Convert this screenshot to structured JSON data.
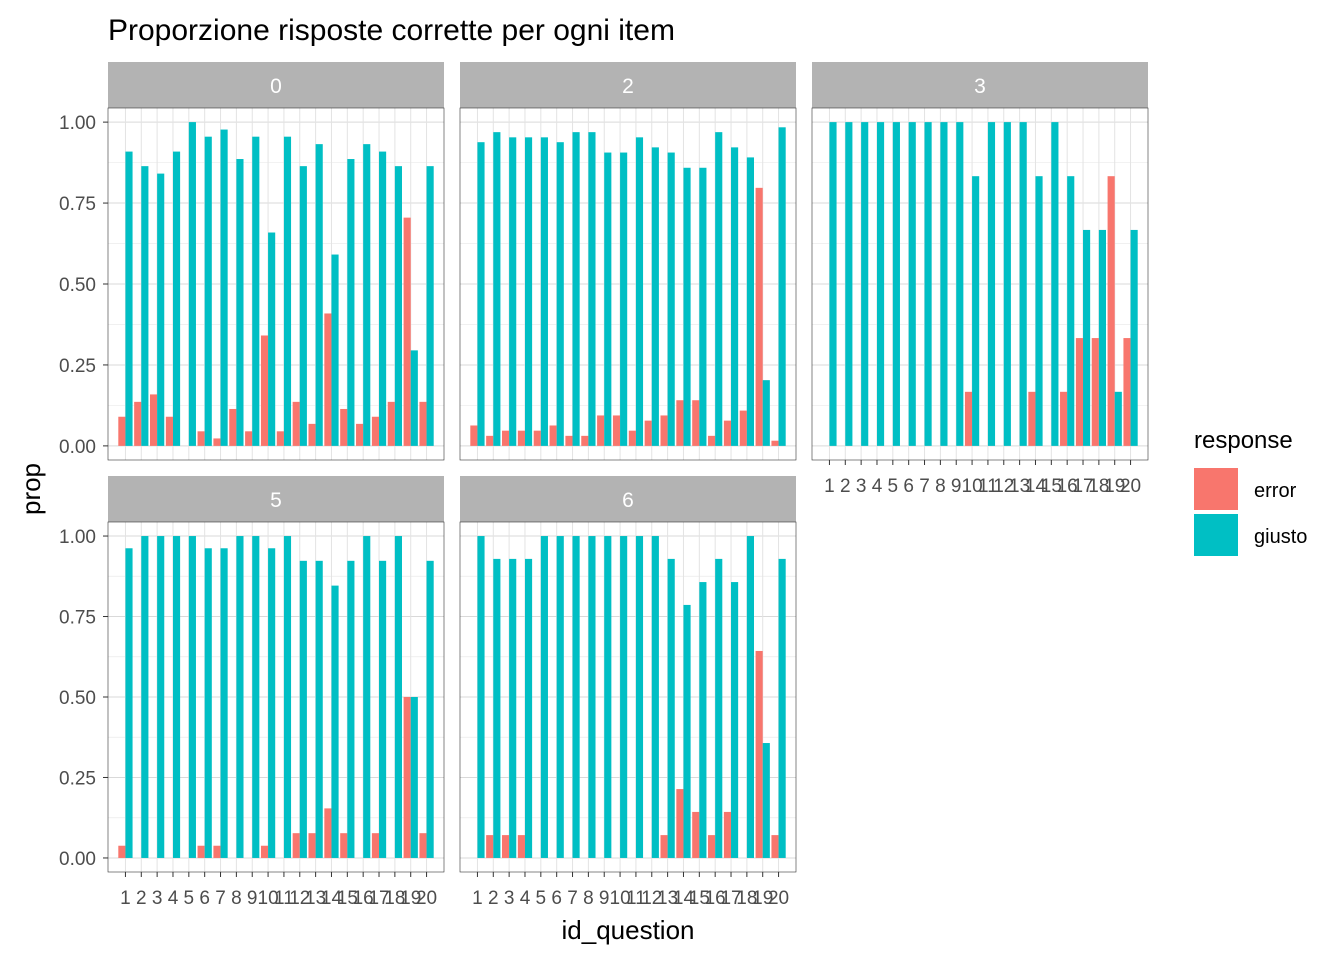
{
  "chart_data": {
    "type": "bar",
    "title": "Proporzione risposte corrette per ogni item",
    "xlabel": "id_question",
    "ylabel": "prop",
    "ylim": [
      0,
      1.1
    ],
    "yticks": [
      "0.00",
      "0.25",
      "0.50",
      "0.75",
      "1.00"
    ],
    "categories": [
      "1",
      "2",
      "3",
      "4",
      "5",
      "6",
      "7",
      "8",
      "9",
      "10",
      "11",
      "12",
      "13",
      "14",
      "15",
      "16",
      "17",
      "18",
      "19",
      "20"
    ],
    "legend": {
      "title": "response",
      "position": "right",
      "items": [
        {
          "name": "error",
          "color": "#F8766D"
        },
        {
          "name": "giusto",
          "color": "#00BFC4"
        }
      ]
    },
    "grid": true,
    "facets": [
      {
        "label": "0",
        "series": [
          {
            "name": "error",
            "values": [
              0.09,
              0.136,
              0.159,
              0.09,
              null,
              0.045,
              0.023,
              0.114,
              0.045,
              0.341,
              0.045,
              0.136,
              0.068,
              0.409,
              0.114,
              0.068,
              0.09,
              0.136,
              0.705,
              0.136
            ]
          },
          {
            "name": "giusto",
            "values": [
              0.909,
              0.864,
              0.841,
              0.909,
              1.0,
              0.955,
              0.977,
              0.886,
              0.955,
              0.659,
              0.955,
              0.864,
              0.932,
              0.591,
              0.886,
              0.932,
              0.909,
              0.864,
              0.295,
              0.864
            ]
          }
        ]
      },
      {
        "label": "2",
        "series": [
          {
            "name": "error",
            "values": [
              0.063,
              0.031,
              0.047,
              0.047,
              0.047,
              0.063,
              0.031,
              0.031,
              0.094,
              0.094,
              0.047,
              0.078,
              0.094,
              0.141,
              0.141,
              0.031,
              0.078,
              0.109,
              0.797,
              0.016
            ]
          },
          {
            "name": "giusto",
            "values": [
              0.938,
              0.969,
              0.953,
              0.953,
              0.953,
              0.938,
              0.969,
              0.969,
              0.906,
              0.906,
              0.953,
              0.922,
              0.906,
              0.859,
              0.859,
              0.969,
              0.922,
              0.891,
              0.203,
              0.984
            ]
          }
        ]
      },
      {
        "label": "3",
        "series": [
          {
            "name": "error",
            "values": [
              null,
              null,
              null,
              null,
              null,
              null,
              null,
              null,
              null,
              0.167,
              null,
              null,
              null,
              0.167,
              null,
              0.167,
              0.333,
              0.333,
              0.833,
              0.333
            ]
          },
          {
            "name": "giusto",
            "values": [
              1.0,
              1.0,
              1.0,
              1.0,
              1.0,
              1.0,
              1.0,
              1.0,
              1.0,
              0.833,
              1.0,
              1.0,
              1.0,
              0.833,
              1.0,
              0.833,
              0.667,
              0.667,
              0.167,
              0.667
            ]
          }
        ]
      },
      {
        "label": "5",
        "series": [
          {
            "name": "error",
            "values": [
              0.038,
              null,
              null,
              null,
              null,
              0.038,
              0.038,
              null,
              null,
              0.038,
              null,
              0.077,
              0.077,
              0.154,
              0.077,
              null,
              0.077,
              null,
              0.5,
              0.077
            ]
          },
          {
            "name": "giusto",
            "values": [
              0.962,
              1.0,
              1.0,
              1.0,
              1.0,
              0.962,
              0.962,
              1.0,
              1.0,
              0.962,
              1.0,
              0.923,
              0.923,
              0.846,
              0.923,
              1.0,
              0.923,
              1.0,
              0.5,
              0.923
            ]
          }
        ]
      },
      {
        "label": "6",
        "series": [
          {
            "name": "error",
            "values": [
              null,
              0.071,
              0.071,
              0.071,
              null,
              null,
              null,
              null,
              null,
              null,
              null,
              null,
              0.071,
              0.214,
              0.143,
              0.071,
              0.143,
              null,
              0.643,
              0.071
            ]
          },
          {
            "name": "giusto",
            "values": [
              1.0,
              0.929,
              0.929,
              0.929,
              1.0,
              1.0,
              1.0,
              1.0,
              1.0,
              1.0,
              1.0,
              1.0,
              0.929,
              0.786,
              0.857,
              0.929,
              0.857,
              1.0,
              0.357,
              0.929
            ]
          }
        ]
      }
    ]
  }
}
